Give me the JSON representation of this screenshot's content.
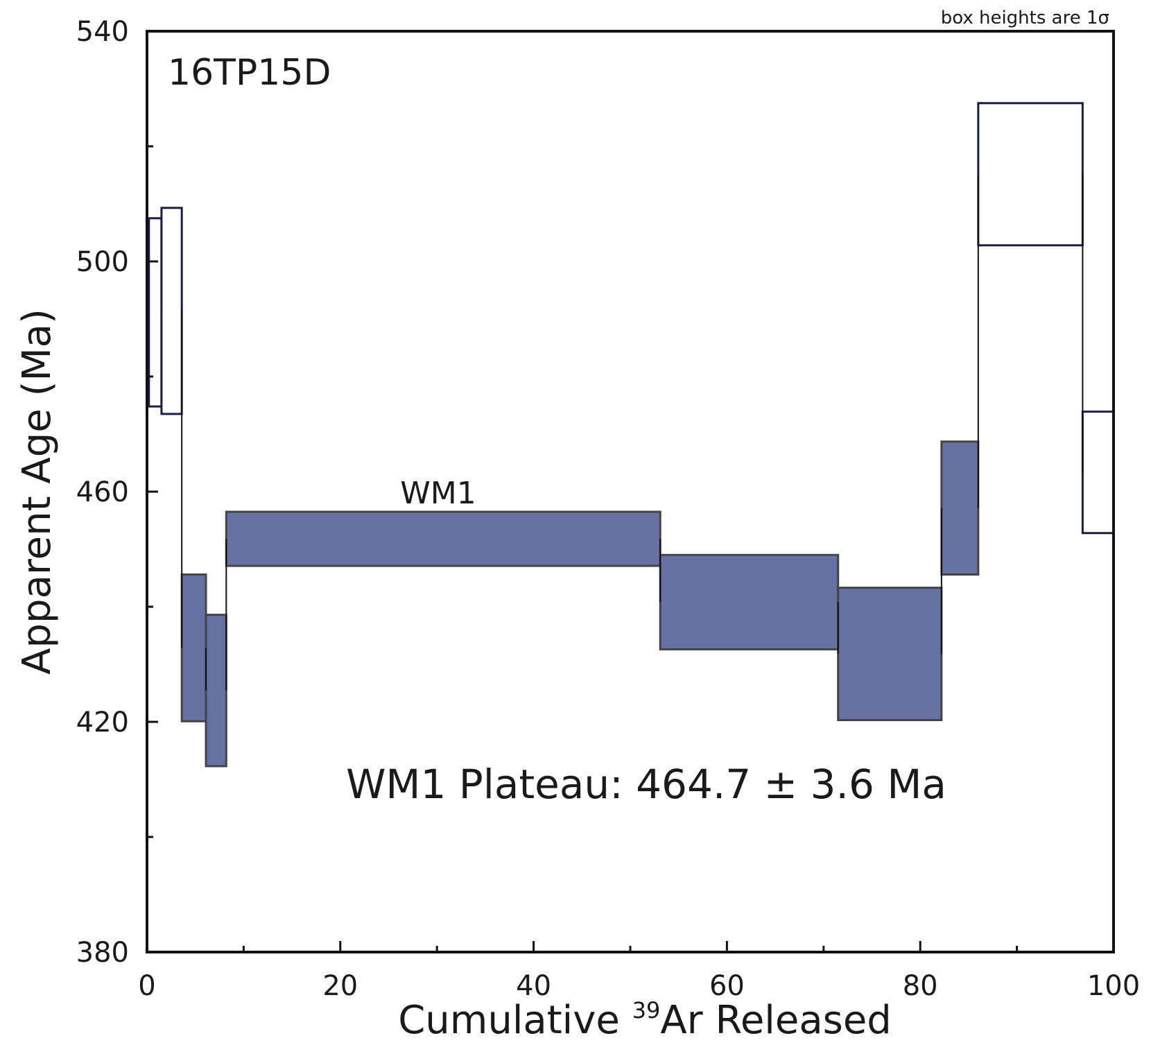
{
  "chart_data": {
    "type": "bar",
    "title": "16TP15D",
    "xlabel": {
      "prefix": "Cumulative ",
      "sup": "39",
      "suffix": "Ar Released"
    },
    "ylabel": "Apparent Age (Ma)",
    "xlim": [
      0,
      100
    ],
    "ylim": [
      380,
      540
    ],
    "x_ticks": [
      0,
      20,
      40,
      60,
      80,
      100
    ],
    "y_ticks": [
      380,
      420,
      460,
      500,
      540
    ],
    "note": "box heights are 1σ",
    "annotations": {
      "plateau_label": "WM1",
      "plateau_text": "WM1 Plateau: 464.7 ± 3.6 Ma"
    },
    "colors": {
      "plateau_fill": "#6672a3",
      "plateau_stroke": "#444444",
      "open_stroke": "#1c1c44",
      "axis": "#111111"
    },
    "steps": [
      {
        "x0": 0.2,
        "x1": 1.5,
        "age_low": 474.8,
        "age_high": 507.5,
        "plateau": false
      },
      {
        "x0": 1.5,
        "x1": 3.6,
        "age_low": 473.5,
        "age_high": 509.3,
        "plateau": false
      },
      {
        "x0": 3.6,
        "x1": 6.1,
        "age_low": 420.1,
        "age_high": 445.6,
        "plateau": true
      },
      {
        "x0": 6.1,
        "x1": 8.2,
        "age_low": 412.3,
        "age_high": 438.6,
        "plateau": true
      },
      {
        "x0": 8.2,
        "x1": 53.1,
        "age_low": 447.1,
        "age_high": 456.5,
        "plateau": true
      },
      {
        "x0": 53.1,
        "x1": 71.5,
        "age_low": 432.6,
        "age_high": 449.0,
        "plateau": true
      },
      {
        "x0": 71.5,
        "x1": 82.2,
        "age_low": 420.3,
        "age_high": 443.3,
        "plateau": true
      },
      {
        "x0": 82.2,
        "x1": 86.0,
        "age_low": 445.6,
        "age_high": 468.7,
        "plateau": true
      },
      {
        "x0": 86.0,
        "x1": 96.8,
        "age_low": 502.8,
        "age_high": 527.5,
        "plateau": false
      },
      {
        "x0": 96.8,
        "x1": 100,
        "age_low": 452.8,
        "age_high": 473.9,
        "plateau": false
      }
    ]
  }
}
